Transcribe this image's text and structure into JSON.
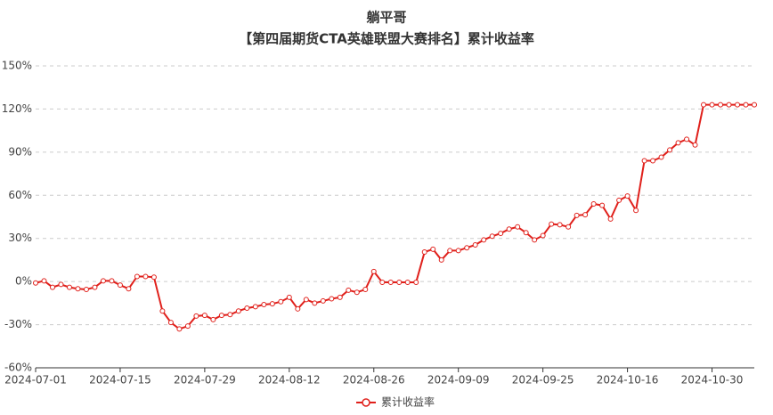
{
  "chart_data": {
    "type": "line",
    "title": "躺平哥",
    "subtitle": "【第四届期货CTA英雄联盟大赛排名】累计收益率",
    "categories": [
      "2024-07-01",
      null,
      null,
      null,
      null,
      null,
      null,
      null,
      null,
      null,
      "2024-07-15",
      null,
      null,
      null,
      null,
      null,
      null,
      null,
      null,
      null,
      "2024-07-29",
      null,
      null,
      null,
      null,
      null,
      null,
      null,
      null,
      null,
      "2024-08-12",
      null,
      null,
      null,
      null,
      null,
      null,
      null,
      null,
      null,
      "2024-08-26",
      null,
      null,
      null,
      null,
      null,
      null,
      null,
      null,
      null,
      "2024-09-09",
      null,
      null,
      null,
      null,
      null,
      null,
      null,
      null,
      null,
      "2024-09-25",
      null,
      null,
      null,
      null,
      null,
      null,
      null,
      null,
      null,
      "2024-10-16",
      null,
      null,
      null,
      null,
      null,
      null,
      null,
      null,
      null,
      "2024-10-30",
      null,
      null,
      null,
      null,
      null
    ],
    "series": [
      {
        "name": "累计收益率",
        "color": "#e0201b",
        "values": [
          -1,
          0.5,
          -4,
          -2,
          -4,
          -5,
          -5.5,
          -4,
          0.5,
          0.5,
          -2.5,
          -5,
          3.5,
          3.5,
          3,
          -20.5,
          -28.5,
          -33,
          -31,
          -24,
          -23.5,
          -26.5,
          -23.5,
          -23,
          -20.5,
          -18.5,
          -17.5,
          -16,
          -15.5,
          -14,
          -11,
          -19,
          -12.5,
          -15,
          -13.5,
          -12,
          -11,
          -6,
          -7.5,
          -5.5,
          7,
          -0.5,
          -0.5,
          -0.5,
          -0.5,
          -0.5,
          20.5,
          22.5,
          15,
          21.5,
          21.5,
          23.5,
          25.5,
          29,
          31.5,
          33.5,
          36.5,
          38,
          34,
          29,
          32,
          40,
          39.5,
          38,
          46,
          46.5,
          54,
          53,
          43.5,
          56.5,
          59.5,
          49.5,
          84,
          84,
          86.5,
          91.5,
          96.5,
          99,
          95,
          123,
          123,
          123,
          123,
          123,
          123,
          123
        ]
      }
    ],
    "ylim": [
      -60,
      150
    ],
    "yticks": [
      {
        "value": -60,
        "label": "-60%"
      },
      {
        "value": -30,
        "label": "-30%"
      },
      {
        "value": 0,
        "label": "0%"
      },
      {
        "value": 30,
        "label": "30%"
      },
      {
        "value": 60,
        "label": "60%"
      },
      {
        "value": 90,
        "label": "90%"
      },
      {
        "value": 120,
        "label": "120%"
      },
      {
        "value": 150,
        "label": "150%"
      }
    ],
    "grid": true,
    "legend": "bottom"
  }
}
